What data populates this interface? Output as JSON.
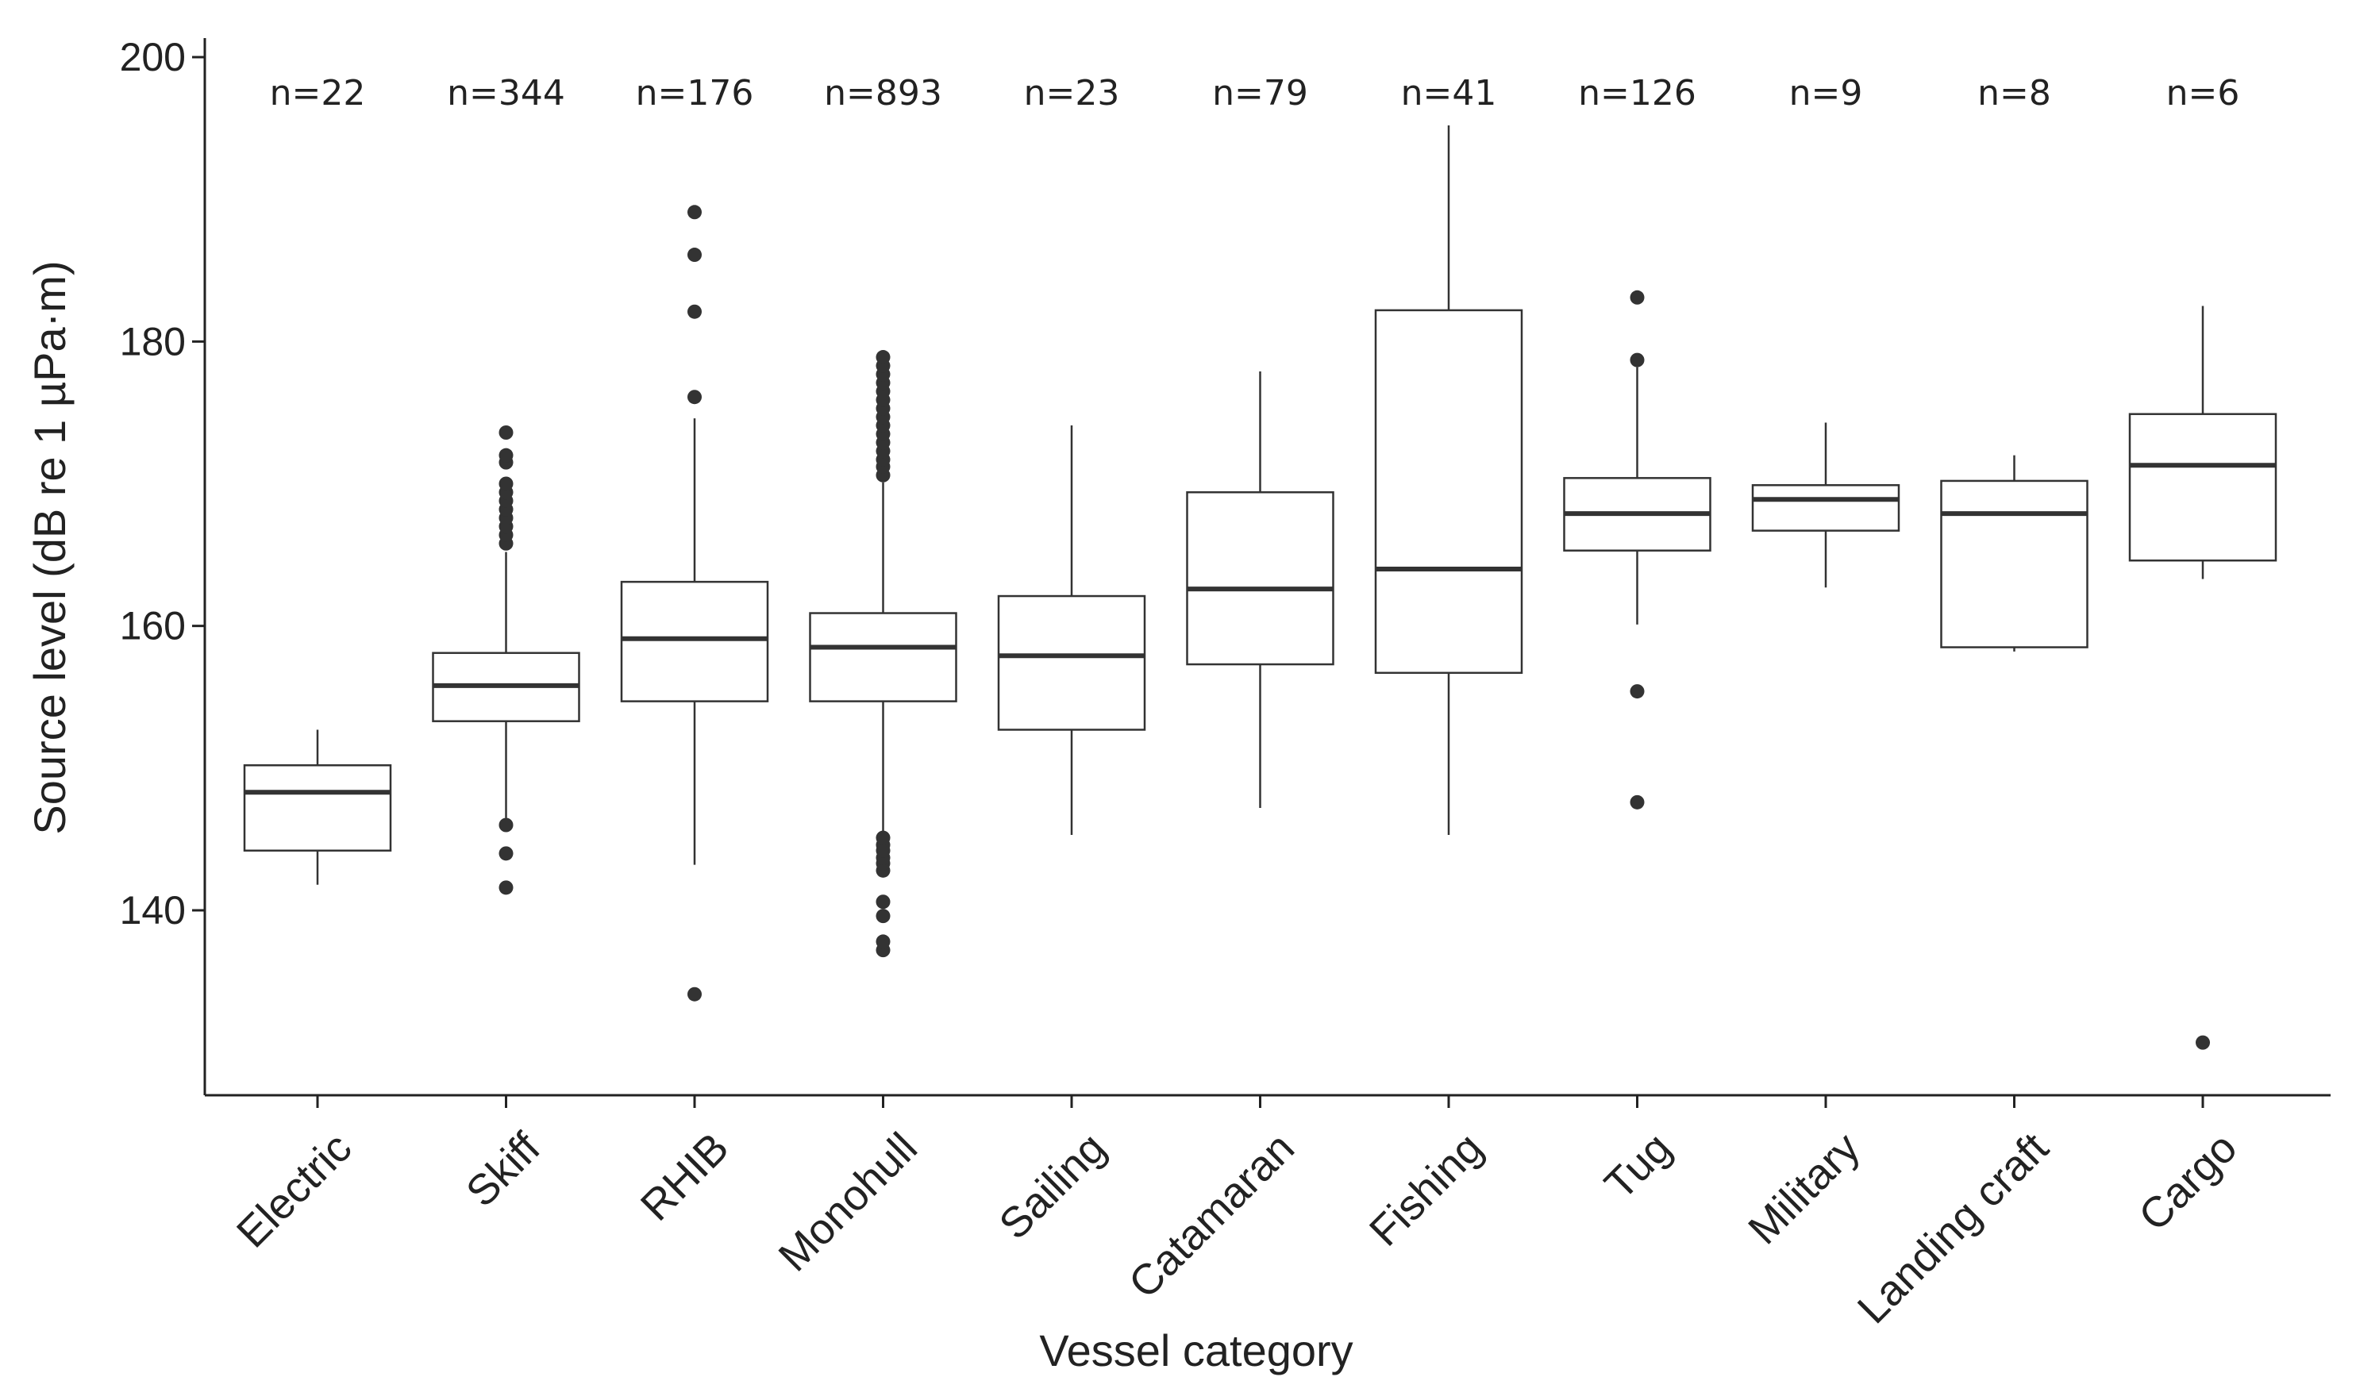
{
  "chart_data": {
    "type": "boxplot",
    "title": "",
    "xlabel": "Vessel category",
    "ylabel": "Source level (dB re 1 µPa·m)",
    "ylim": [
      127,
      201
    ],
    "yticks": [
      140,
      160,
      180,
      200
    ],
    "grid": false,
    "categories": [
      {
        "name": "Electric",
        "n_label": "n=22",
        "whisker_low": 141.8,
        "q1": 144.2,
        "median": 148.3,
        "q3": 150.2,
        "whisker_high": 152.7,
        "outliers": []
      },
      {
        "name": "Skiff",
        "n_label": "n=344",
        "whisker_low": 146.5,
        "q1": 153.3,
        "median": 155.8,
        "q3": 158.1,
        "whisker_high": 165.2,
        "outliers": [
          146,
          144,
          141.6,
          165.8,
          166.4,
          167,
          167.6,
          168.2,
          168.8,
          169.4,
          170,
          171.5,
          172,
          173.6
        ]
      },
      {
        "name": "RHIB",
        "n_label": "n=176",
        "whisker_low": 143.2,
        "q1": 154.7,
        "median": 159.1,
        "q3": 163.1,
        "whisker_high": 174.6,
        "outliers": [
          134.1,
          176.1,
          182.1,
          186.1,
          189.1
        ]
      },
      {
        "name": "Monohull",
        "n_label": "n=893",
        "whisker_low": 145.5,
        "q1": 154.7,
        "median": 158.5,
        "q3": 160.9,
        "whisker_high": 170.1,
        "outliers": [
          137.2,
          137.8,
          139.6,
          140.6,
          142.8,
          143.3,
          143.7,
          144.2,
          144.6,
          145.1,
          170.6,
          171.2,
          171.7,
          172.3,
          172.9,
          173.5,
          174.1,
          174.7,
          175.3,
          175.9,
          176.5,
          177.1,
          177.7,
          178.3,
          178.9
        ]
      },
      {
        "name": "Sailing",
        "n_label": "n=23",
        "whisker_low": 145.3,
        "q1": 152.7,
        "median": 157.9,
        "q3": 162.1,
        "whisker_high": 174.1,
        "outliers": []
      },
      {
        "name": "Catamaran",
        "n_label": "n=79",
        "whisker_low": 147.2,
        "q1": 157.3,
        "median": 162.6,
        "q3": 169.4,
        "whisker_high": 177.9,
        "outliers": []
      },
      {
        "name": "Fishing",
        "n_label": "n=41",
        "whisker_low": 145.3,
        "q1": 156.7,
        "median": 164,
        "q3": 182.2,
        "whisker_high": 195.2,
        "outliers": []
      },
      {
        "name": "Tug",
        "n_label": "n=126",
        "whisker_low": 160.1,
        "q1": 165.3,
        "median": 167.9,
        "q3": 170.4,
        "whisker_high": 178.2,
        "outliers": [
          147.6,
          155.4,
          178.7,
          183.1
        ]
      },
      {
        "name": "Military",
        "n_label": "n=9",
        "whisker_low": 162.7,
        "q1": 166.7,
        "median": 168.9,
        "q3": 169.9,
        "whisker_high": 174.3,
        "outliers": []
      },
      {
        "name": "Landing craft",
        "n_label": "n=8",
        "whisker_low": 158.2,
        "q1": 158.5,
        "median": 167.9,
        "q3": 170.2,
        "whisker_high": 172,
        "outliers": []
      },
      {
        "name": "Cargo",
        "n_label": "n=6",
        "whisker_low": 163.3,
        "q1": 164.6,
        "median": 171.3,
        "q3": 174.9,
        "whisker_high": 182.5,
        "outliers": [
          130.7
        ]
      }
    ]
  }
}
